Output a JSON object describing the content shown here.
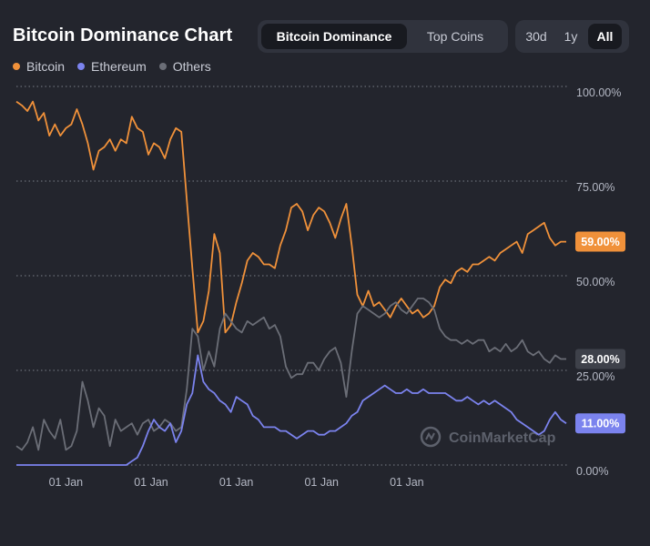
{
  "header": {
    "title": "Bitcoin Dominance Chart"
  },
  "type_toggle": {
    "options": [
      "Bitcoin Dominance",
      "Top Coins"
    ],
    "active": "Bitcoin Dominance"
  },
  "range_toggle": {
    "options": [
      "30d",
      "1y",
      "All"
    ],
    "active": "All"
  },
  "legend": [
    {
      "name": "Bitcoin",
      "color": "#f0913a"
    },
    {
      "name": "Ethereum",
      "color": "#7b83ee"
    },
    {
      "name": "Others",
      "color": "#6b6e77"
    }
  ],
  "watermark": "CoinMarketCap",
  "chart_data": {
    "type": "line",
    "title": "Bitcoin Dominance Chart",
    "xlabel": "",
    "ylabel": "",
    "ylim": [
      0,
      100
    ],
    "xlim": [
      0,
      100
    ],
    "yticks": [
      {
        "value": 100,
        "label": "100.00%"
      },
      {
        "value": 75,
        "label": "75.00%"
      },
      {
        "value": 50,
        "label": "50.00%"
      },
      {
        "value": 25,
        "label": "25.00%"
      },
      {
        "value": 0,
        "label": "0.00%"
      }
    ],
    "xticks": [
      {
        "value": 9,
        "label": "01 Jan"
      },
      {
        "value": 24.5,
        "label": "01 Jan"
      },
      {
        "value": 40,
        "label": "01 Jan"
      },
      {
        "value": 55.5,
        "label": "01 Jan"
      },
      {
        "value": 71,
        "label": "01 Jan"
      }
    ],
    "series": [
      {
        "name": "Bitcoin",
        "color": "#f0913a",
        "last_label": "59.00%",
        "points": [
          [
            0,
            96
          ],
          [
            1,
            95
          ],
          [
            2,
            93.5
          ],
          [
            3,
            96
          ],
          [
            4,
            91
          ],
          [
            5,
            93
          ],
          [
            6,
            87
          ],
          [
            7,
            90
          ],
          [
            8,
            87
          ],
          [
            9,
            89
          ],
          [
            10,
            90
          ],
          [
            11,
            94
          ],
          [
            12,
            90
          ],
          [
            13,
            85
          ],
          [
            14,
            78
          ],
          [
            15,
            83
          ],
          [
            16,
            84
          ],
          [
            17,
            86
          ],
          [
            18,
            83
          ],
          [
            19,
            86
          ],
          [
            20,
            85
          ],
          [
            21,
            92
          ],
          [
            22,
            89
          ],
          [
            23,
            88
          ],
          [
            24,
            82
          ],
          [
            25,
            85
          ],
          [
            26,
            84
          ],
          [
            27,
            81
          ],
          [
            28,
            86
          ],
          [
            29,
            89
          ],
          [
            30,
            88
          ],
          [
            31,
            70
          ],
          [
            32,
            52
          ],
          [
            33,
            35
          ],
          [
            34,
            38
          ],
          [
            35,
            46
          ],
          [
            36,
            61
          ],
          [
            37,
            56
          ],
          [
            38,
            35
          ],
          [
            39,
            37
          ],
          [
            40,
            43
          ],
          [
            41,
            48
          ],
          [
            42,
            54
          ],
          [
            43,
            56
          ],
          [
            44,
            55
          ],
          [
            45,
            53
          ],
          [
            46,
            53
          ],
          [
            47,
            52
          ],
          [
            48,
            58
          ],
          [
            49,
            62
          ],
          [
            50,
            68
          ],
          [
            51,
            69
          ],
          [
            52,
            67
          ],
          [
            53,
            62
          ],
          [
            54,
            66
          ],
          [
            55,
            68
          ],
          [
            56,
            67
          ],
          [
            57,
            64
          ],
          [
            58,
            60
          ],
          [
            59,
            65
          ],
          [
            60,
            69
          ],
          [
            61,
            58
          ],
          [
            62,
            45
          ],
          [
            63,
            42
          ],
          [
            64,
            46
          ],
          [
            65,
            42
          ],
          [
            66,
            43
          ],
          [
            67,
            41
          ],
          [
            68,
            39
          ],
          [
            69,
            42
          ],
          [
            70,
            44
          ],
          [
            71,
            42
          ],
          [
            72,
            40
          ],
          [
            73,
            41
          ],
          [
            74,
            39
          ],
          [
            75,
            40
          ],
          [
            76,
            42
          ],
          [
            77,
            47
          ],
          [
            78,
            49
          ],
          [
            79,
            48
          ],
          [
            80,
            51
          ],
          [
            81,
            52
          ],
          [
            82,
            51
          ],
          [
            83,
            53
          ],
          [
            84,
            53
          ],
          [
            85,
            54
          ],
          [
            86,
            55
          ],
          [
            87,
            54
          ],
          [
            88,
            56
          ],
          [
            89,
            57
          ],
          [
            90,
            58
          ],
          [
            91,
            59
          ],
          [
            92,
            56
          ],
          [
            93,
            61
          ],
          [
            94,
            62
          ],
          [
            95,
            63
          ],
          [
            96,
            64
          ],
          [
            97,
            60
          ],
          [
            98,
            58
          ],
          [
            99,
            59
          ],
          [
            100,
            59
          ]
        ]
      },
      {
        "name": "Others",
        "color": "#6b6e77",
        "last_label": "28.00%",
        "points": [
          [
            0,
            5
          ],
          [
            1,
            4
          ],
          [
            2,
            6
          ],
          [
            3,
            10
          ],
          [
            4,
            4
          ],
          [
            5,
            12
          ],
          [
            6,
            9
          ],
          [
            7,
            7
          ],
          [
            8,
            12
          ],
          [
            9,
            4
          ],
          [
            10,
            5
          ],
          [
            11,
            9
          ],
          [
            12,
            22
          ],
          [
            13,
            17
          ],
          [
            14,
            10
          ],
          [
            15,
            15
          ],
          [
            16,
            13
          ],
          [
            17,
            5
          ],
          [
            18,
            12
          ],
          [
            19,
            9
          ],
          [
            20,
            10
          ],
          [
            21,
            11
          ],
          [
            22,
            8
          ],
          [
            23,
            11
          ],
          [
            24,
            12
          ],
          [
            25,
            9
          ],
          [
            26,
            10
          ],
          [
            27,
            12
          ],
          [
            28,
            11
          ],
          [
            29,
            9
          ],
          [
            30,
            10
          ],
          [
            31,
            20
          ],
          [
            32,
            36
          ],
          [
            33,
            34
          ],
          [
            34,
            25
          ],
          [
            35,
            30
          ],
          [
            36,
            26
          ],
          [
            37,
            36
          ],
          [
            38,
            40
          ],
          [
            39,
            38
          ],
          [
            40,
            36
          ],
          [
            41,
            35
          ],
          [
            42,
            38
          ],
          [
            43,
            37
          ],
          [
            44,
            38
          ],
          [
            45,
            39
          ],
          [
            46,
            36
          ],
          [
            47,
            37
          ],
          [
            48,
            34
          ],
          [
            49,
            26
          ],
          [
            50,
            23
          ],
          [
            51,
            24
          ],
          [
            52,
            24
          ],
          [
            53,
            27
          ],
          [
            54,
            27
          ],
          [
            55,
            25
          ],
          [
            56,
            28
          ],
          [
            57,
            30
          ],
          [
            58,
            31
          ],
          [
            59,
            27
          ],
          [
            60,
            18
          ],
          [
            61,
            30
          ],
          [
            62,
            40
          ],
          [
            63,
            42
          ],
          [
            64,
            41
          ],
          [
            65,
            40
          ],
          [
            66,
            39
          ],
          [
            67,
            40
          ],
          [
            68,
            42
          ],
          [
            69,
            43
          ],
          [
            70,
            41
          ],
          [
            71,
            40
          ],
          [
            72,
            42
          ],
          [
            73,
            44
          ],
          [
            74,
            44
          ],
          [
            75,
            43
          ],
          [
            76,
            41
          ],
          [
            77,
            36
          ],
          [
            78,
            34
          ],
          [
            79,
            33
          ],
          [
            80,
            33
          ],
          [
            81,
            32
          ],
          [
            82,
            33
          ],
          [
            83,
            32
          ],
          [
            84,
            33
          ],
          [
            85,
            33
          ],
          [
            86,
            30
          ],
          [
            87,
            31
          ],
          [
            88,
            30
          ],
          [
            89,
            32
          ],
          [
            90,
            30
          ],
          [
            91,
            31
          ],
          [
            92,
            33
          ],
          [
            93,
            30
          ],
          [
            94,
            29
          ],
          [
            95,
            30
          ],
          [
            96,
            28
          ],
          [
            97,
            27
          ],
          [
            98,
            29
          ],
          [
            99,
            28
          ],
          [
            100,
            28
          ]
        ]
      },
      {
        "name": "Ethereum",
        "color": "#7b83ee",
        "last_label": "11.00%",
        "points": [
          [
            0,
            0
          ],
          [
            5,
            0
          ],
          [
            10,
            0
          ],
          [
            15,
            0
          ],
          [
            20,
            0
          ],
          [
            21,
            1
          ],
          [
            22,
            2
          ],
          [
            23,
            5
          ],
          [
            24,
            9
          ],
          [
            25,
            12
          ],
          [
            26,
            10
          ],
          [
            27,
            9
          ],
          [
            28,
            11
          ],
          [
            29,
            6
          ],
          [
            30,
            9
          ],
          [
            31,
            16
          ],
          [
            32,
            19
          ],
          [
            33,
            29
          ],
          [
            34,
            22
          ],
          [
            35,
            20
          ],
          [
            36,
            19
          ],
          [
            37,
            17
          ],
          [
            38,
            16
          ],
          [
            39,
            14
          ],
          [
            40,
            18
          ],
          [
            41,
            17
          ],
          [
            42,
            16
          ],
          [
            43,
            13
          ],
          [
            44,
            12
          ],
          [
            45,
            10
          ],
          [
            46,
            10
          ],
          [
            47,
            10
          ],
          [
            48,
            9
          ],
          [
            49,
            9
          ],
          [
            50,
            8
          ],
          [
            51,
            7
          ],
          [
            52,
            8
          ],
          [
            53,
            9
          ],
          [
            54,
            9
          ],
          [
            55,
            8
          ],
          [
            56,
            8
          ],
          [
            57,
            9
          ],
          [
            58,
            9
          ],
          [
            59,
            10
          ],
          [
            60,
            11
          ],
          [
            61,
            13
          ],
          [
            62,
            14
          ],
          [
            63,
            17
          ],
          [
            64,
            18
          ],
          [
            65,
            19
          ],
          [
            66,
            20
          ],
          [
            67,
            21
          ],
          [
            68,
            20
          ],
          [
            69,
            19
          ],
          [
            70,
            19
          ],
          [
            71,
            20
          ],
          [
            72,
            19
          ],
          [
            73,
            19
          ],
          [
            74,
            20
          ],
          [
            75,
            19
          ],
          [
            76,
            19
          ],
          [
            77,
            19
          ],
          [
            78,
            19
          ],
          [
            79,
            18
          ],
          [
            80,
            17
          ],
          [
            81,
            17
          ],
          [
            82,
            18
          ],
          [
            83,
            17
          ],
          [
            84,
            16
          ],
          [
            85,
            17
          ],
          [
            86,
            16
          ],
          [
            87,
            17
          ],
          [
            88,
            16
          ],
          [
            89,
            15
          ],
          [
            90,
            14
          ],
          [
            91,
            12
          ],
          [
            92,
            11
          ],
          [
            93,
            10
          ],
          [
            94,
            9
          ],
          [
            95,
            8
          ],
          [
            96,
            9
          ],
          [
            97,
            12
          ],
          [
            98,
            14
          ],
          [
            99,
            12
          ],
          [
            100,
            11
          ]
        ]
      }
    ]
  }
}
